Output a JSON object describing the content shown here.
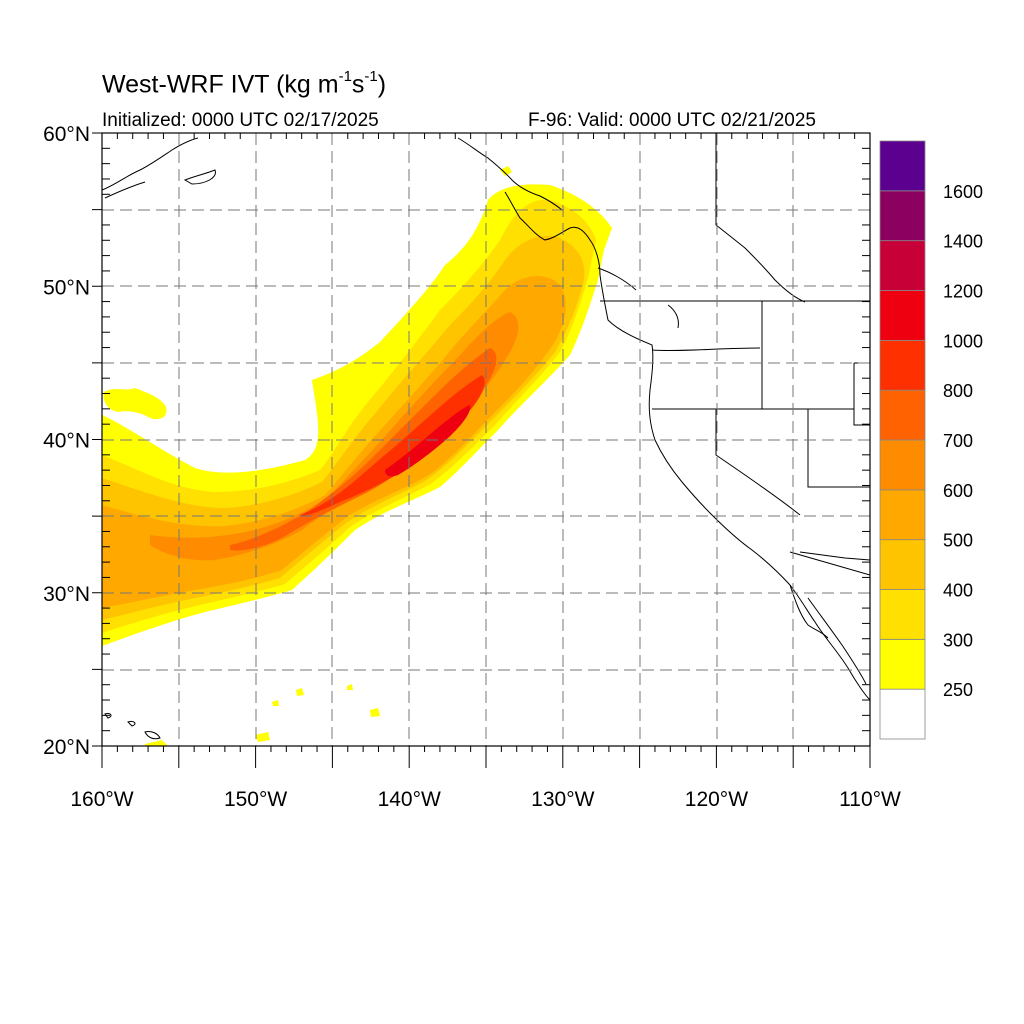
{
  "title": {
    "main": "West-WRF IVT (kg m",
    "exp1": "-1",
    "mid": "s",
    "exp2": "-1",
    "close": ")"
  },
  "subtitle_left": "Initialized: 0000 UTC 02/17/2025",
  "subtitle_right": "F-96: Valid: 0000 UTC 02/21/2025",
  "map": {
    "lon_range": [
      -160,
      -110
    ],
    "lat_range": [
      20,
      60
    ],
    "gridlines": "dashed",
    "lon_ticks": [
      {
        "lon": -160,
        "label": "160°W"
      },
      {
        "lon": -150,
        "label": "150°W"
      },
      {
        "lon": -140,
        "label": "140°W"
      },
      {
        "lon": -130,
        "label": "130°W"
      },
      {
        "lon": -120,
        "label": "120°W"
      },
      {
        "lon": -110,
        "label": "110°W"
      }
    ],
    "lat_ticks": [
      {
        "lat": 20,
        "label": "20°N"
      },
      {
        "lat": 30,
        "label": "30°N"
      },
      {
        "lat": 40,
        "label": "40°N"
      },
      {
        "lat": 50,
        "label": "50°N"
      },
      {
        "lat": 60,
        "label": "60°N"
      }
    ]
  },
  "colorbar": {
    "levels": [
      {
        "value": "",
        "color": "#ffffff"
      },
      {
        "value": "250",
        "color": "#ffff00"
      },
      {
        "value": "300",
        "color": "#ffe000"
      },
      {
        "value": "400",
        "color": "#ffc400"
      },
      {
        "value": "500",
        "color": "#ffa800"
      },
      {
        "value": "600",
        "color": "#ff8c00"
      },
      {
        "value": "700",
        "color": "#ff6200"
      },
      {
        "value": "800",
        "color": "#ff3000"
      },
      {
        "value": "1000",
        "color": "#ee0010"
      },
      {
        "value": "1200",
        "color": "#c80038"
      },
      {
        "value": "1400",
        "color": "#8c0060"
      },
      {
        "value": "1600",
        "color": "#5c0090"
      }
    ]
  }
}
